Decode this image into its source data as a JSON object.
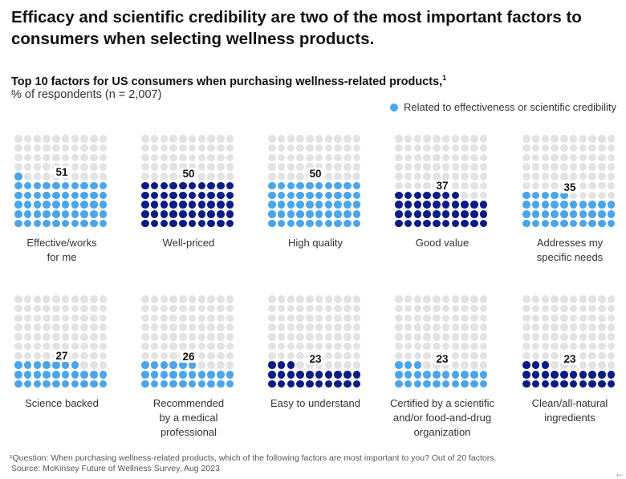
{
  "title": "Efficacy and scientific credibility are two of the most important factors to consumers when selecting wellness products.",
  "colors": {
    "effective": "#4ba5ec",
    "other": "#0c1c86",
    "empty": "#e3e3e3"
  },
  "chart_data": {
    "type": "waffle",
    "title": "Top 10 factors for US consumers when purchasing wellness-related products,",
    "title_footnote_mark": "1",
    "subtitle": "% of respondents (n = 2,007)",
    "legend": [
      {
        "label": "Related to effectiveness or scientific credibility",
        "color": "#4ba5ec"
      }
    ],
    "categories": [
      {
        "label": "Effective/works\nfor me",
        "value": 51,
        "effectiveness": true
      },
      {
        "label": "Well-priced",
        "value": 50,
        "effectiveness": false
      },
      {
        "label": "High quality",
        "value": 50,
        "effectiveness": true
      },
      {
        "label": "Good value",
        "value": 37,
        "effectiveness": false
      },
      {
        "label": "Addresses my\nspecific needs",
        "value": 35,
        "effectiveness": true
      },
      {
        "label": "Science backed",
        "value": 27,
        "effectiveness": true
      },
      {
        "label": "Recommended\nby a medical\nprofessional",
        "value": 26,
        "effectiveness": true
      },
      {
        "label": "Easy to understand",
        "value": 23,
        "effectiveness": false
      },
      {
        "label": "Certified by a scientific\nand/or food-and-drug\norganization",
        "value": 23,
        "effectiveness": true
      },
      {
        "label": "Clean/all-natural\ningredients",
        "value": 23,
        "effectiveness": false
      }
    ]
  },
  "footnote": "¹Question: When purchasing wellness-related products, which of the following factors are most important to you? Out of 20 factors.",
  "source": "Source: McKinsey Future of Wellness Survey, Aug 2023",
  "back_icon": "arrow-left-icon"
}
